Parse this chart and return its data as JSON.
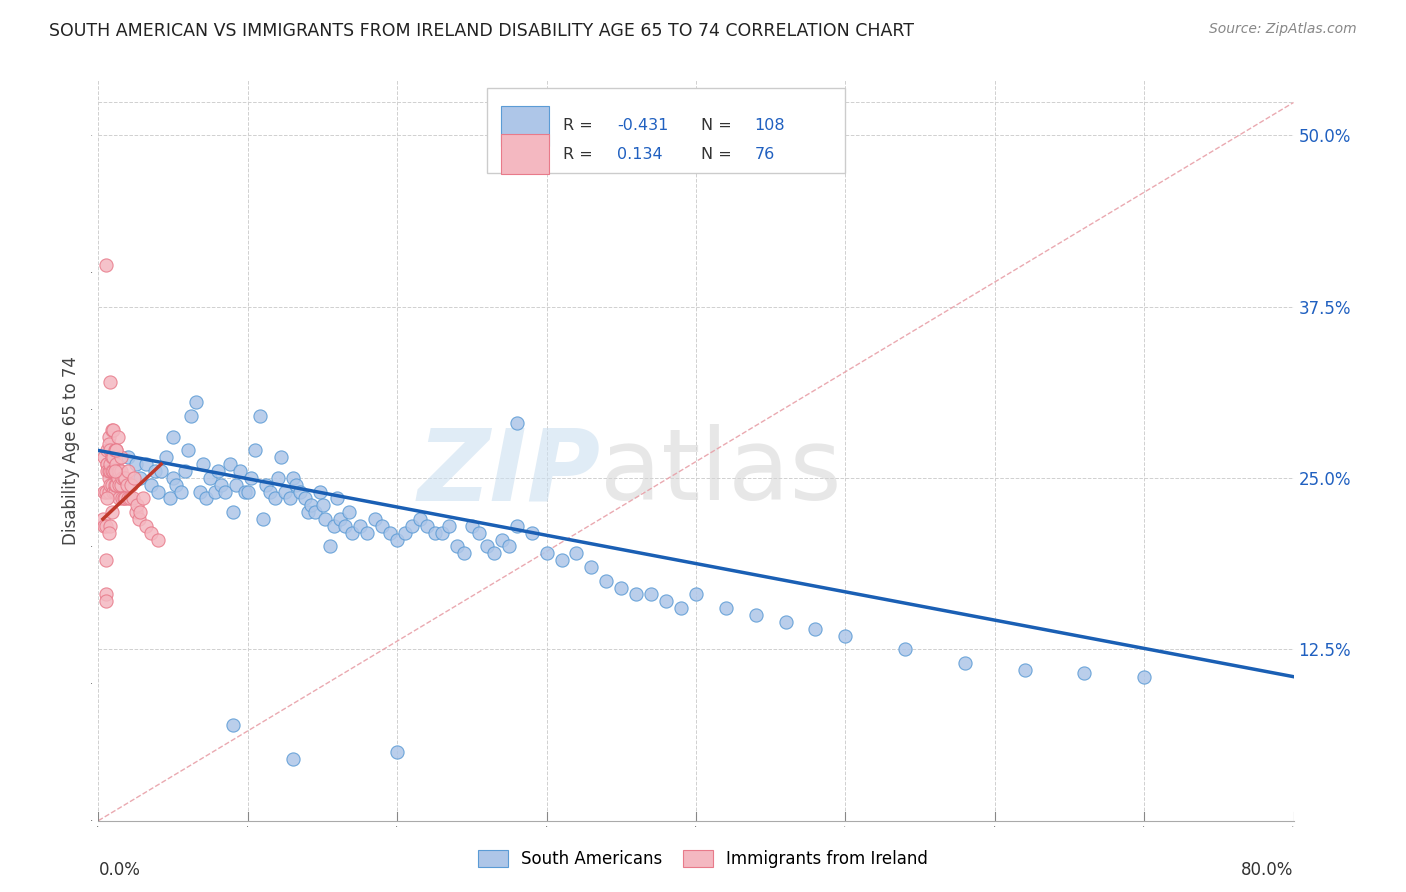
{
  "title": "SOUTH AMERICAN VS IMMIGRANTS FROM IRELAND DISABILITY AGE 65 TO 74 CORRELATION CHART",
  "source": "Source: ZipAtlas.com",
  "ylabel": "Disability Age 65 to 74",
  "right_yticks": [
    0.125,
    0.25,
    0.375,
    0.5
  ],
  "right_yticklabels": [
    "12.5%",
    "25.0%",
    "37.5%",
    "50.0%"
  ],
  "xmin": 0.0,
  "xmax": 0.8,
  "ymin": 0.0,
  "ymax": 0.54,
  "blue_color": "#aec6e8",
  "pink_color": "#f4b8c1",
  "blue_edge": "#5b9bd5",
  "pink_edge": "#e87a8a",
  "trend_blue": "#1a5fb4",
  "trend_pink": "#c0392b",
  "diagonal_color": "#e8a0a8",
  "grid_color": "#d0d0d0",
  "legend_color": "#2060c0",
  "south_americans_x": [
    0.02,
    0.025,
    0.028,
    0.032,
    0.035,
    0.038,
    0.04,
    0.042,
    0.045,
    0.048,
    0.05,
    0.052,
    0.055,
    0.058,
    0.06,
    0.062,
    0.065,
    0.068,
    0.07,
    0.072,
    0.075,
    0.078,
    0.08,
    0.082,
    0.085,
    0.088,
    0.09,
    0.092,
    0.095,
    0.098,
    0.1,
    0.102,
    0.105,
    0.108,
    0.11,
    0.112,
    0.115,
    0.118,
    0.12,
    0.122,
    0.125,
    0.128,
    0.13,
    0.132,
    0.135,
    0.138,
    0.14,
    0.142,
    0.145,
    0.148,
    0.15,
    0.152,
    0.155,
    0.158,
    0.16,
    0.162,
    0.165,
    0.168,
    0.17,
    0.175,
    0.18,
    0.185,
    0.19,
    0.195,
    0.2,
    0.205,
    0.21,
    0.215,
    0.22,
    0.225,
    0.23,
    0.235,
    0.24,
    0.245,
    0.25,
    0.255,
    0.26,
    0.265,
    0.27,
    0.275,
    0.28,
    0.29,
    0.3,
    0.31,
    0.32,
    0.33,
    0.34,
    0.35,
    0.36,
    0.37,
    0.38,
    0.39,
    0.4,
    0.42,
    0.44,
    0.46,
    0.48,
    0.5,
    0.54,
    0.58,
    0.62,
    0.66,
    0.7,
    0.05,
    0.09,
    0.13,
    0.2,
    0.28
  ],
  "south_americans_y": [
    0.265,
    0.26,
    0.25,
    0.26,
    0.245,
    0.255,
    0.24,
    0.255,
    0.265,
    0.235,
    0.25,
    0.245,
    0.24,
    0.255,
    0.27,
    0.295,
    0.305,
    0.24,
    0.26,
    0.235,
    0.25,
    0.24,
    0.255,
    0.245,
    0.24,
    0.26,
    0.225,
    0.245,
    0.255,
    0.24,
    0.24,
    0.25,
    0.27,
    0.295,
    0.22,
    0.245,
    0.24,
    0.235,
    0.25,
    0.265,
    0.24,
    0.235,
    0.25,
    0.245,
    0.24,
    0.235,
    0.225,
    0.23,
    0.225,
    0.24,
    0.23,
    0.22,
    0.2,
    0.215,
    0.235,
    0.22,
    0.215,
    0.225,
    0.21,
    0.215,
    0.21,
    0.22,
    0.215,
    0.21,
    0.205,
    0.21,
    0.215,
    0.22,
    0.215,
    0.21,
    0.21,
    0.215,
    0.2,
    0.195,
    0.215,
    0.21,
    0.2,
    0.195,
    0.205,
    0.2,
    0.215,
    0.21,
    0.195,
    0.19,
    0.195,
    0.185,
    0.175,
    0.17,
    0.165,
    0.165,
    0.16,
    0.155,
    0.165,
    0.155,
    0.15,
    0.145,
    0.14,
    0.135,
    0.125,
    0.115,
    0.11,
    0.108,
    0.105,
    0.28,
    0.07,
    0.045,
    0.05,
    0.29
  ],
  "ireland_x": [
    0.003,
    0.004,
    0.004,
    0.004,
    0.005,
    0.005,
    0.005,
    0.005,
    0.005,
    0.006,
    0.006,
    0.006,
    0.006,
    0.007,
    0.007,
    0.007,
    0.007,
    0.007,
    0.008,
    0.008,
    0.008,
    0.008,
    0.008,
    0.009,
    0.009,
    0.009,
    0.009,
    0.01,
    0.01,
    0.01,
    0.01,
    0.011,
    0.011,
    0.011,
    0.011,
    0.012,
    0.012,
    0.012,
    0.012,
    0.013,
    0.013,
    0.013,
    0.014,
    0.014,
    0.014,
    0.015,
    0.015,
    0.015,
    0.016,
    0.016,
    0.017,
    0.017,
    0.018,
    0.018,
    0.019,
    0.02,
    0.02,
    0.021,
    0.022,
    0.023,
    0.024,
    0.025,
    0.026,
    0.027,
    0.028,
    0.03,
    0.032,
    0.035,
    0.04,
    0.005,
    0.008,
    0.012,
    0.006,
    0.007,
    0.009,
    0.011
  ],
  "ireland_y": [
    0.22,
    0.215,
    0.24,
    0.265,
    0.165,
    0.19,
    0.215,
    0.405,
    0.24,
    0.26,
    0.27,
    0.26,
    0.255,
    0.28,
    0.25,
    0.255,
    0.24,
    0.275,
    0.255,
    0.27,
    0.26,
    0.245,
    0.32,
    0.255,
    0.265,
    0.245,
    0.285,
    0.24,
    0.255,
    0.265,
    0.285,
    0.24,
    0.255,
    0.245,
    0.27,
    0.245,
    0.255,
    0.26,
    0.27,
    0.25,
    0.255,
    0.28,
    0.235,
    0.255,
    0.245,
    0.245,
    0.255,
    0.265,
    0.235,
    0.25,
    0.235,
    0.25,
    0.235,
    0.25,
    0.245,
    0.235,
    0.255,
    0.235,
    0.245,
    0.235,
    0.25,
    0.225,
    0.23,
    0.22,
    0.225,
    0.235,
    0.215,
    0.21,
    0.205,
    0.16,
    0.215,
    0.27,
    0.235,
    0.21,
    0.225,
    0.255
  ]
}
